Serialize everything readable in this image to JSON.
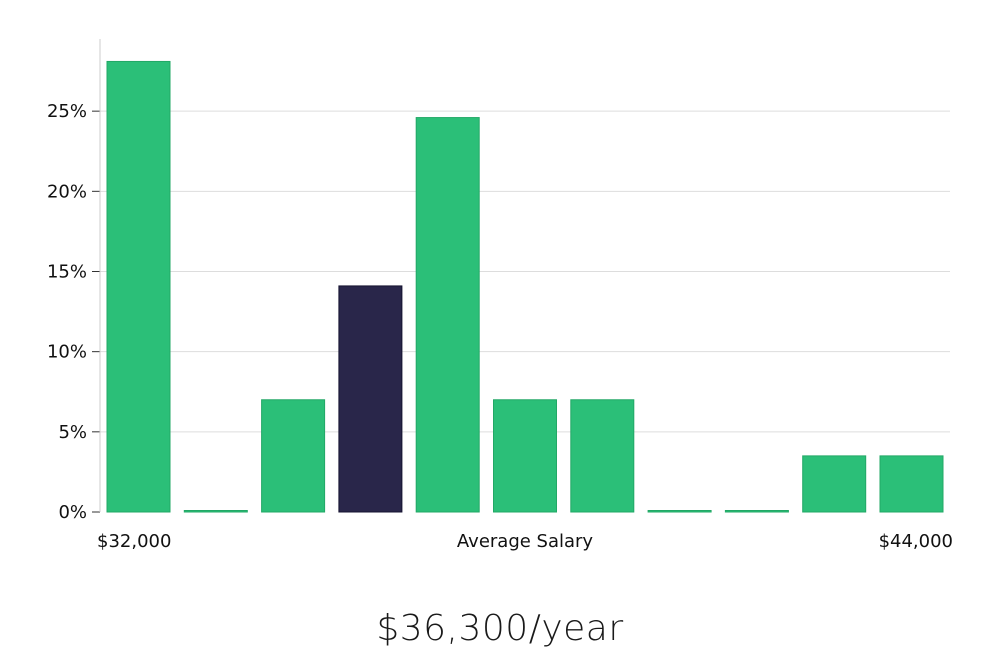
{
  "chart_data": {
    "type": "bar",
    "y_unit": "%",
    "values": [
      28.1,
      0,
      7.0,
      14.1,
      24.6,
      7.0,
      7.0,
      0,
      0,
      3.5,
      3.5
    ],
    "highlight_index": 3,
    "ylim": [
      0,
      29.5
    ],
    "yticks": [
      0,
      5,
      10,
      15,
      20,
      25
    ],
    "ytick_labels": [
      "0%",
      "5%",
      "10%",
      "15%",
      "20%",
      "25%"
    ],
    "x_min_label": "$32,000",
    "x_max_label": "$44,000",
    "xlabel": "Average Salary",
    "grid": true,
    "colors": {
      "bar": "#2bbf78",
      "highlight": "#29264a",
      "grid": "#dddddd",
      "axis": "#cccccc"
    }
  },
  "salary_text": "$36,300/year"
}
